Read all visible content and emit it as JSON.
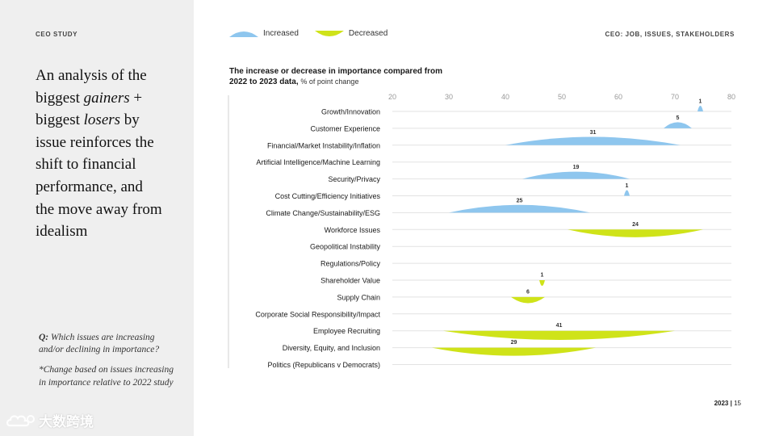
{
  "header": {
    "left_label": "CEO STUDY",
    "right_label": "CEO: JOB, ISSUES, STAKEHOLDERS"
  },
  "sidebar": {
    "headline_parts": [
      {
        "text": "An analysis of the biggest ",
        "italic": false
      },
      {
        "text": "gainers",
        "italic": true
      },
      {
        "text": " + biggest ",
        "italic": false
      },
      {
        "text": "losers",
        "italic": true
      },
      {
        "text": " by issue reinforces the shift to financial performance, and the move away from idealism",
        "italic": false
      }
    ],
    "question_label": "Q:",
    "question_text": " Which issues are increasing and/or declining in importance?",
    "note": "*Change based on issues increasing in importance relative to 2022 study"
  },
  "watermark": {
    "text": "大数跨境",
    "icon": "cloud-logo-icon"
  },
  "footer": {
    "year": "2023",
    "separator": "|",
    "page": "15"
  },
  "colors": {
    "increased": "#8ec6ee",
    "decreased": "#cfe319",
    "grid": "#e2e2e2",
    "sidebar": "#efefef"
  },
  "chart_data": {
    "type": "range-shape",
    "title": "The increase or decrease in importance compared from 2022 to 2023 data,",
    "subtitle": "% of point change",
    "legend": [
      {
        "name": "Increased",
        "color": "#8ec6ee",
        "direction": "up"
      },
      {
        "name": "Decreased",
        "color": "#cfe319",
        "direction": "down"
      }
    ],
    "x_ticks": [
      20,
      30,
      40,
      50,
      60,
      70,
      80
    ],
    "xlim": [
      20,
      80
    ],
    "categories": [
      "Growth/Innovation",
      "Customer Experience",
      "Financial/Market Instability/Inflation",
      "Artificial Intelligence/Machine Learning",
      "Security/Privacy",
      "Cost Cutting/Efficiency Initiatives",
      "Climate Change/Sustainability/ESG",
      "Workforce Issues",
      "Geopolitical Instability",
      "Regulations/Policy",
      "Shareholder Value",
      "Supply Chain",
      "Corporate Social Responsibility/Impact",
      "Employee Recruiting",
      "Diversity, Equity, and Inclusion",
      "Politics (Republicans v Democrats)"
    ],
    "changes": [
      {
        "category": "Growth/Innovation",
        "direction": "increased",
        "from": 74,
        "to": 75,
        "change": 1
      },
      {
        "category": "Customer Experience",
        "direction": "increased",
        "from": 68,
        "to": 73,
        "change": 5
      },
      {
        "category": "Financial/Market Instability/Inflation",
        "direction": "increased",
        "from": 40,
        "to": 71,
        "change": 31
      },
      {
        "category": "Security/Privacy",
        "direction": "increased",
        "from": 43,
        "to": 62,
        "change": 19
      },
      {
        "category": "Cost Cutting/Efficiency Initiatives",
        "direction": "increased",
        "from": 61,
        "to": 62,
        "change": 1
      },
      {
        "category": "Climate Change/Sustainability/ESG",
        "direction": "increased",
        "from": 30,
        "to": 55,
        "change": 25
      },
      {
        "category": "Workforce Issues",
        "direction": "decreased",
        "from": 51,
        "to": 75,
        "change": 24
      },
      {
        "category": "Shareholder Value",
        "direction": "decreased",
        "from": 46,
        "to": 47,
        "change": 1
      },
      {
        "category": "Supply Chain",
        "direction": "decreased",
        "from": 41,
        "to": 47,
        "change": 6
      },
      {
        "category": "Employee Recruiting",
        "direction": "decreased",
        "from": 29,
        "to": 70,
        "change": 41
      },
      {
        "category": "Diversity, Equity, and Inclusion",
        "direction": "decreased",
        "from": 27,
        "to": 56,
        "change": 29
      }
    ]
  }
}
